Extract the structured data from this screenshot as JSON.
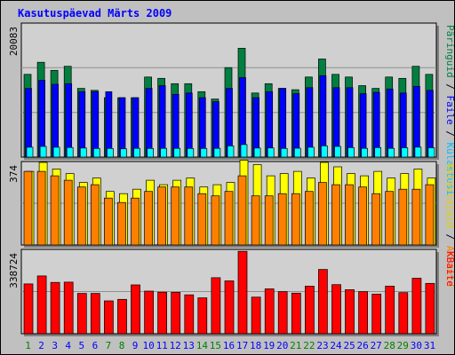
{
  "chart_data": {
    "type": "bar",
    "title": "Kasutuspäevad Märts 2009",
    "categories": [
      "1",
      "2",
      "3",
      "4",
      "5",
      "6",
      "7",
      "8",
      "9",
      "10",
      "11",
      "12",
      "13",
      "14",
      "15",
      "16",
      "17",
      "18",
      "19",
      "20",
      "21",
      "22",
      "23",
      "24",
      "25",
      "26",
      "27",
      "28",
      "29",
      "30",
      "31"
    ],
    "weekend_days": [
      "1",
      "7",
      "8",
      "14",
      "15",
      "21",
      "22",
      "28",
      "29"
    ],
    "panels": [
      {
        "id": "top",
        "ymax_label": "20083",
        "ymax": 20083,
        "series": [
          {
            "name": "Külastusi",
            "color": "#00ffff",
            "values": [
              1470,
              1590,
              1470,
              1430,
              1350,
              1290,
              1290,
              1240,
              1300,
              1290,
              1300,
              1300,
              1290,
              1290,
              1300,
              1670,
              1880,
              1350,
              1370,
              1290,
              1330,
              1470,
              1690,
              1590,
              1420,
              1300,
              1420,
              1300,
              1390,
              1490,
              1390
            ]
          },
          {
            "name": "Faile",
            "color": "#0000ff",
            "values": [
              10300,
              11500,
              10900,
              11000,
              9800,
              9800,
              9800,
              8900,
              8900,
              10300,
              10700,
              9400,
              9600,
              8900,
              8300,
              10300,
              11900,
              8900,
              9800,
              10300,
              9500,
              10400,
              12200,
              10400,
              10400,
              9500,
              9700,
              10200,
              9600,
              10600,
              10000
            ]
          },
          {
            "name": "Päringuid",
            "color": "#008040",
            "values": [
              12400,
              14200,
              13000,
              13600,
              10300,
              10000,
              8900,
              8900,
              8900,
              12000,
              11800,
              11000,
              11000,
              9800,
              8700,
              13400,
              16300,
              9600,
              11000,
              10300,
              10100,
              12000,
              14700,
              12400,
              12000,
              10700,
              10300,
              12000,
              11800,
              13600,
              12400
            ]
          }
        ]
      },
      {
        "id": "mid",
        "ymax_label": "374",
        "ymax": 374,
        "series": [
          {
            "name": "Aruteid",
            "color": "#ff8000",
            "values": [
              330,
              330,
              310,
              290,
              260,
              270,
              210,
              190,
              210,
              240,
              260,
              260,
              260,
              230,
              220,
              240,
              310,
              220,
              220,
              230,
              230,
              240,
              280,
              270,
              270,
              260,
              230,
              240,
              250,
              250,
              270
            ]
          },
          {
            "name": "Külastajaid",
            "color": "#ffff00",
            "values": [
              330,
              370,
              340,
              320,
              280,
              300,
              240,
              230,
              250,
              290,
              270,
              290,
              300,
              260,
              270,
              280,
              380,
              360,
              310,
              320,
              330,
              300,
              370,
              350,
              320,
              310,
              330,
              300,
              320,
              340,
              300
            ]
          }
        ]
      },
      {
        "id": "bottom",
        "ymax_label": "338724",
        "ymax": 338724,
        "series": [
          {
            "name": "KBaite",
            "color": "#ff0000",
            "values": [
              200000,
              232000,
              206000,
              207000,
              162000,
              162000,
              132000,
              138000,
              196000,
              171000,
              167000,
              166000,
              156000,
              144000,
              225000,
              212000,
              331000,
              147000,
              180000,
              169000,
              163000,
              191000,
              258000,
              197000,
              177000,
              169000,
              159000,
              191000,
              165000,
              223000,
              202000
            ]
          }
        ]
      }
    ],
    "legend": {
      "top": [
        {
          "text": "Päringuid",
          "color": "#008040"
        },
        {
          "text": " / ",
          "color": "#000000"
        },
        {
          "text": "Faile",
          "color": "#0000ff"
        },
        {
          "text": " / ",
          "color": "#000000"
        },
        {
          "text": "Külastusi",
          "color": "#00c0ff"
        }
      ],
      "mid": [
        {
          "text": "Külastajaid",
          "color": "#e0d000"
        },
        {
          "text": " / ",
          "color": "#000000"
        },
        {
          "text": "Aruteid",
          "color": "#ff8000"
        }
      ],
      "bottom": [
        {
          "text": "KBaite",
          "color": "#ff0000"
        }
      ]
    },
    "colors": {
      "frame_bg": "#c0c0c0",
      "plot_bg": "#d0d0d0",
      "title": "#0000ff",
      "weekday_label": "#0000ff",
      "weekend_label": "#008000"
    }
  }
}
